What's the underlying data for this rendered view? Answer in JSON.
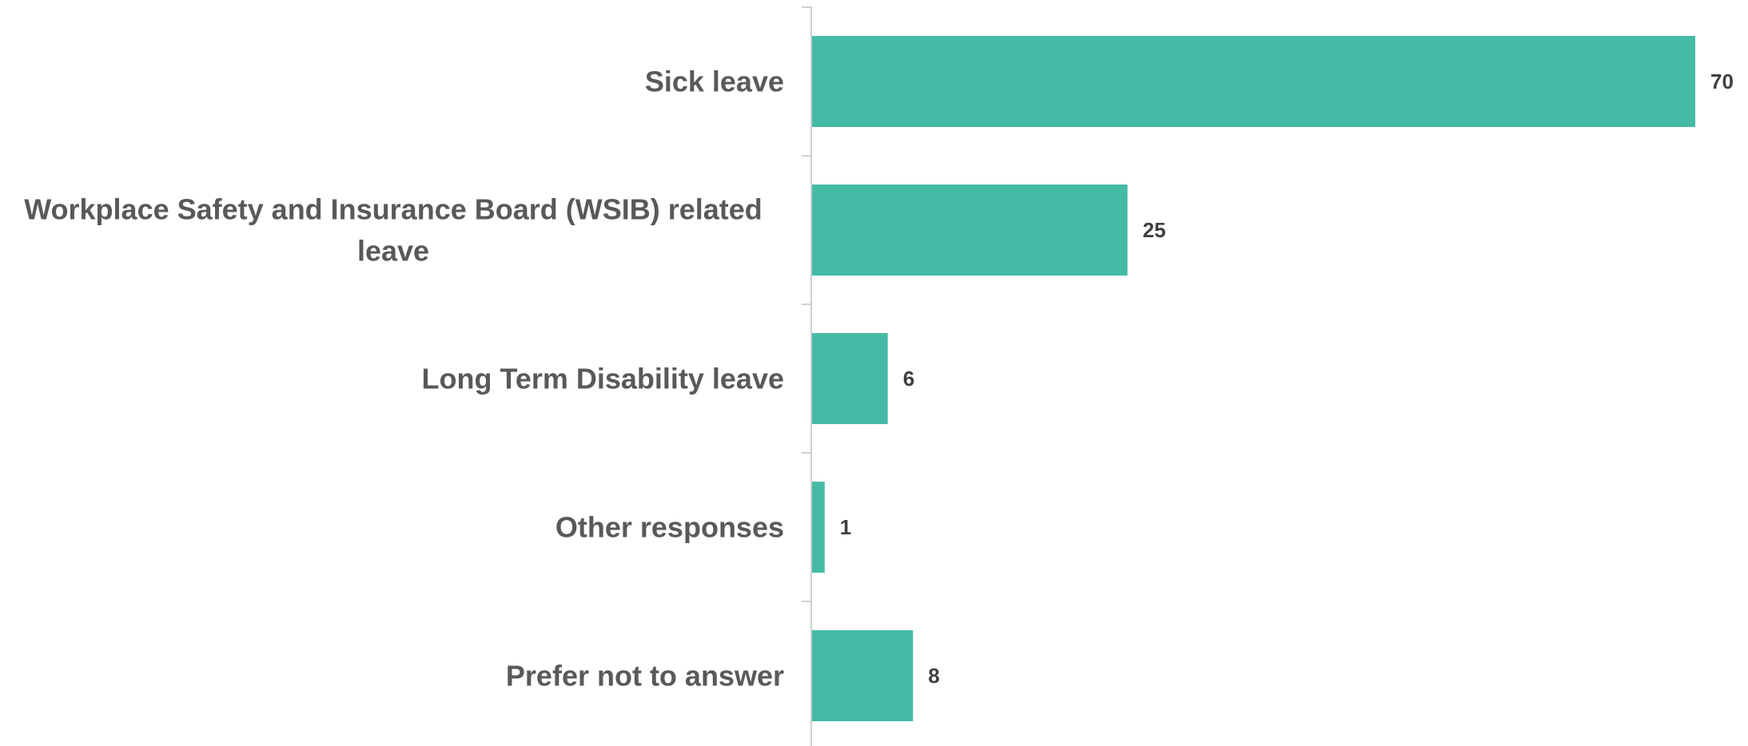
{
  "chart_data": {
    "type": "bar",
    "orientation": "horizontal",
    "categories": [
      "Sick leave",
      "Workplace Safety and Insurance Board (WSIB) related leave",
      "Long Term Disability leave",
      "Other responses",
      "Prefer not to answer"
    ],
    "category_label_lines": [
      [
        "Sick leave"
      ],
      [
        "Workplace Safety and Insurance Board (WSIB) related",
        "leave"
      ],
      [
        "Long Term Disability leave"
      ],
      [
        "Other responses"
      ],
      [
        "Prefer not to answer"
      ]
    ],
    "values": [
      70,
      25,
      6,
      1,
      8
    ],
    "data_labels": [
      "70",
      "25",
      "6",
      "1",
      "8"
    ],
    "xlim": [
      0,
      70
    ],
    "title": "",
    "xlabel": "",
    "ylabel": "",
    "grid": false,
    "legend": "none",
    "bar_color": "#45BBA5"
  }
}
